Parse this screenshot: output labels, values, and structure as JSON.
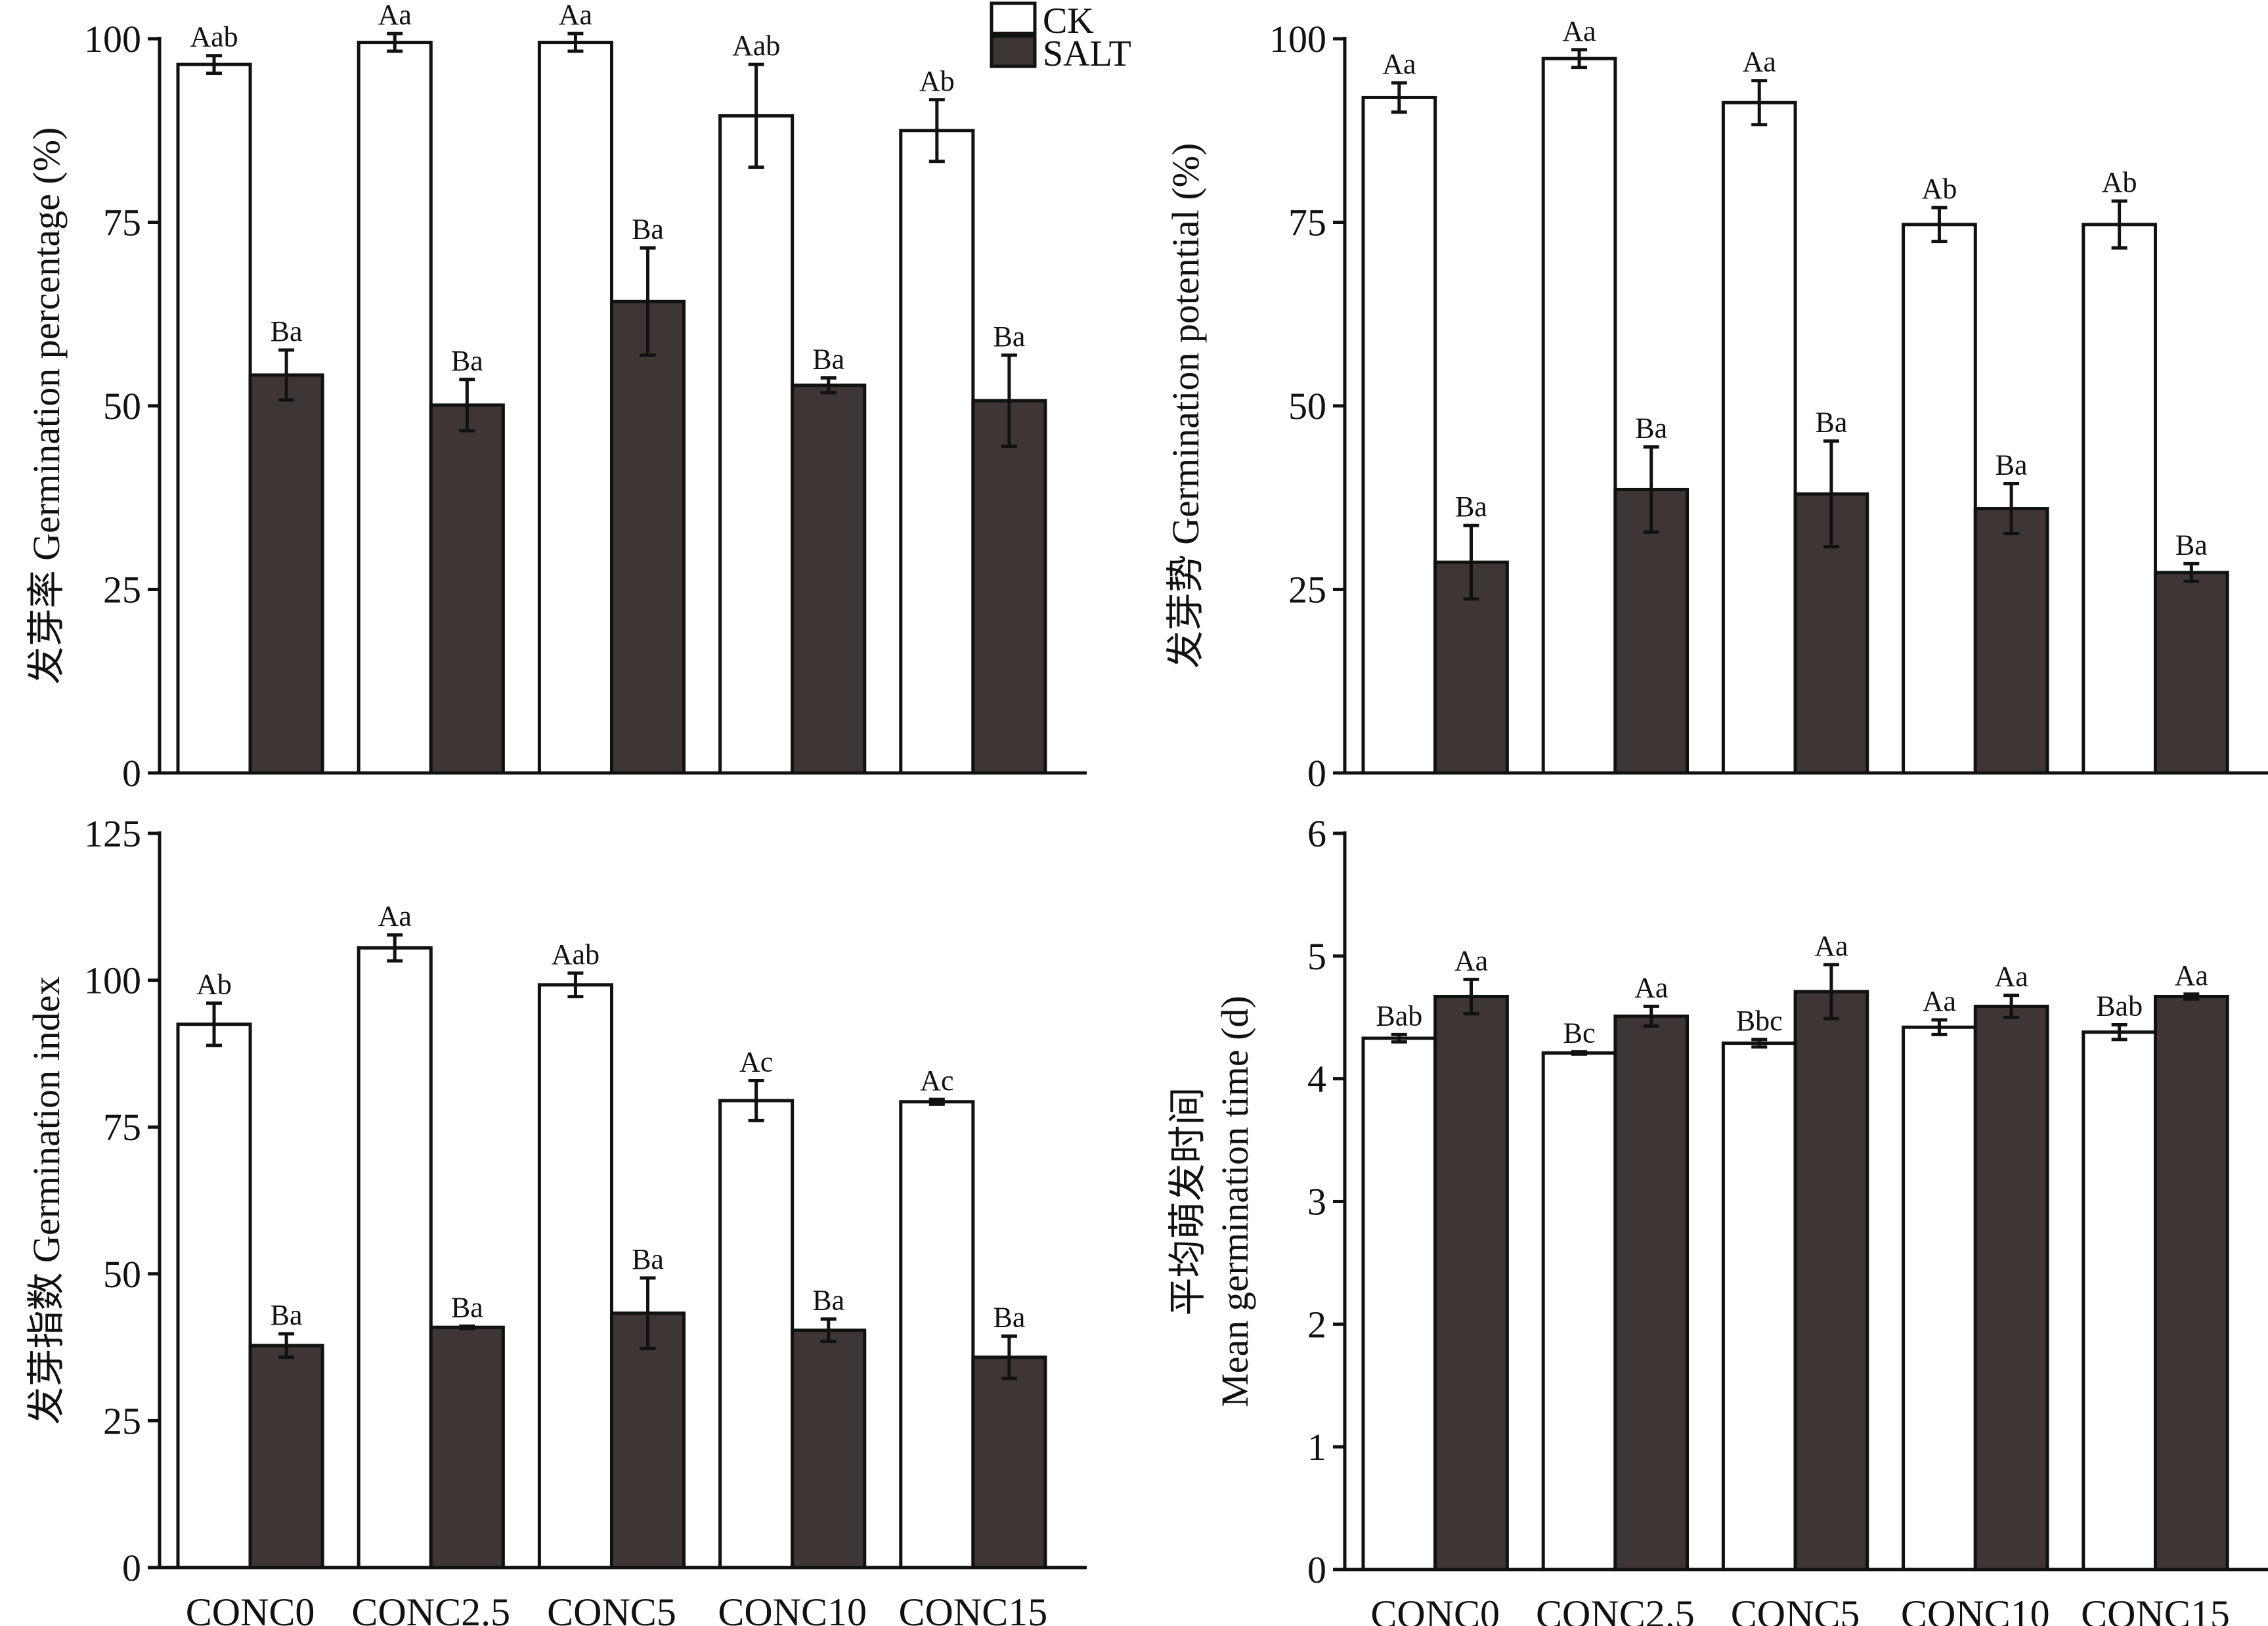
{
  "legend": {
    "items": [
      {
        "name": "CK",
        "color": "#ffffff"
      },
      {
        "name": "SALT",
        "color": "#3d3635"
      }
    ],
    "position": "top-right of first panel"
  },
  "chart_data": [
    {
      "type": "bar",
      "id": "germination-percentage",
      "ylabel": "发芽率 Germination percentage (%)",
      "ylim": [
        0,
        100
      ],
      "yticks": [
        0,
        25,
        50,
        75,
        100
      ],
      "categories": [
        "CONC0",
        "CONC2.5",
        "CONC5",
        "CONC10",
        "CONC15"
      ],
      "show_xlabels": false,
      "series": [
        {
          "name": "CK",
          "values": [
            96.5,
            99.5,
            99.5,
            89.5,
            87.5
          ],
          "errors": [
            1.2,
            1.2,
            1.2,
            7.0,
            4.2
          ],
          "labels": [
            "Aab",
            "Aa",
            "Aa",
            "Aab",
            "Ab"
          ]
        },
        {
          "name": "SALT",
          "values": [
            54.2,
            50.1,
            64.2,
            52.8,
            50.7
          ],
          "errors": [
            3.4,
            3.5,
            7.3,
            1.0,
            6.2
          ],
          "labels": [
            "Ba",
            "Ba",
            "Ba",
            "Ba",
            "Ba"
          ]
        }
      ]
    },
    {
      "type": "bar",
      "id": "germination-potential",
      "ylabel": "发芽势 Germination potential (%)",
      "ylim": [
        0,
        100
      ],
      "yticks": [
        0,
        25,
        50,
        75,
        100
      ],
      "categories": [
        "CONC0",
        "CONC2.5",
        "CONC5",
        "CONC10",
        "CONC15"
      ],
      "show_xlabels": false,
      "series": [
        {
          "name": "CK",
          "values": [
            92.0,
            97.3,
            91.3,
            74.7,
            74.7
          ],
          "errors": [
            2.0,
            1.2,
            3.0,
            2.3,
            3.2
          ],
          "labels": [
            "Aa",
            "Aa",
            "Aa",
            "Ab",
            "Ab"
          ]
        },
        {
          "name": "SALT",
          "values": [
            28.7,
            38.6,
            38.0,
            36.0,
            27.3
          ],
          "errors": [
            5.0,
            5.8,
            7.2,
            3.4,
            1.2
          ],
          "labels": [
            "Ba",
            "Ba",
            "Ba",
            "Ba",
            "Ba"
          ]
        }
      ]
    },
    {
      "type": "bar",
      "id": "germination-index",
      "ylabel": "发芽指数 Germination index",
      "ylim": [
        0,
        125
      ],
      "yticks": [
        0,
        25,
        50,
        75,
        100,
        125
      ],
      "categories": [
        "CONC0",
        "CONC2.5",
        "CONC5",
        "CONC10",
        "CONC15"
      ],
      "show_xlabels": true,
      "series": [
        {
          "name": "CK",
          "values": [
            92.5,
            105.5,
            99.2,
            79.5,
            79.3
          ],
          "errors": [
            3.6,
            2.2,
            2.0,
            3.4,
            0.4
          ],
          "labels": [
            "Ab",
            "Aa",
            "Aab",
            "Ac",
            "Ac"
          ]
        },
        {
          "name": "SALT",
          "values": [
            37.8,
            40.9,
            43.3,
            40.4,
            35.8
          ],
          "errors": [
            2.0,
            0.2,
            6.0,
            1.9,
            3.6
          ],
          "labels": [
            "Ba",
            "Ba",
            "Ba",
            "Ba",
            "Ba"
          ]
        }
      ]
    },
    {
      "type": "bar",
      "id": "mean-germination-time",
      "ylabel": "平均萌发时间",
      "ylabel2": "Mean germination time (d)",
      "ylim": [
        0,
        6
      ],
      "yticks": [
        0,
        1,
        2,
        3,
        4,
        5,
        6
      ],
      "categories": [
        "CONC0",
        "CONC2.5",
        "CONC5",
        "CONC10",
        "CONC15"
      ],
      "show_xlabels": true,
      "series": [
        {
          "name": "CK",
          "values": [
            4.33,
            4.21,
            4.29,
            4.42,
            4.38
          ],
          "errors": [
            0.03,
            0.01,
            0.03,
            0.06,
            0.06
          ],
          "labels": [
            "Bab",
            "Bc",
            "Bbc",
            "Aa",
            "Bab"
          ]
        },
        {
          "name": "SALT",
          "values": [
            4.67,
            4.51,
            4.71,
            4.59,
            4.67
          ],
          "errors": [
            0.14,
            0.08,
            0.22,
            0.09,
            0.02
          ],
          "labels": [
            "Aa",
            "Aa",
            "Aa",
            "Aa",
            "Aa"
          ]
        }
      ]
    }
  ]
}
